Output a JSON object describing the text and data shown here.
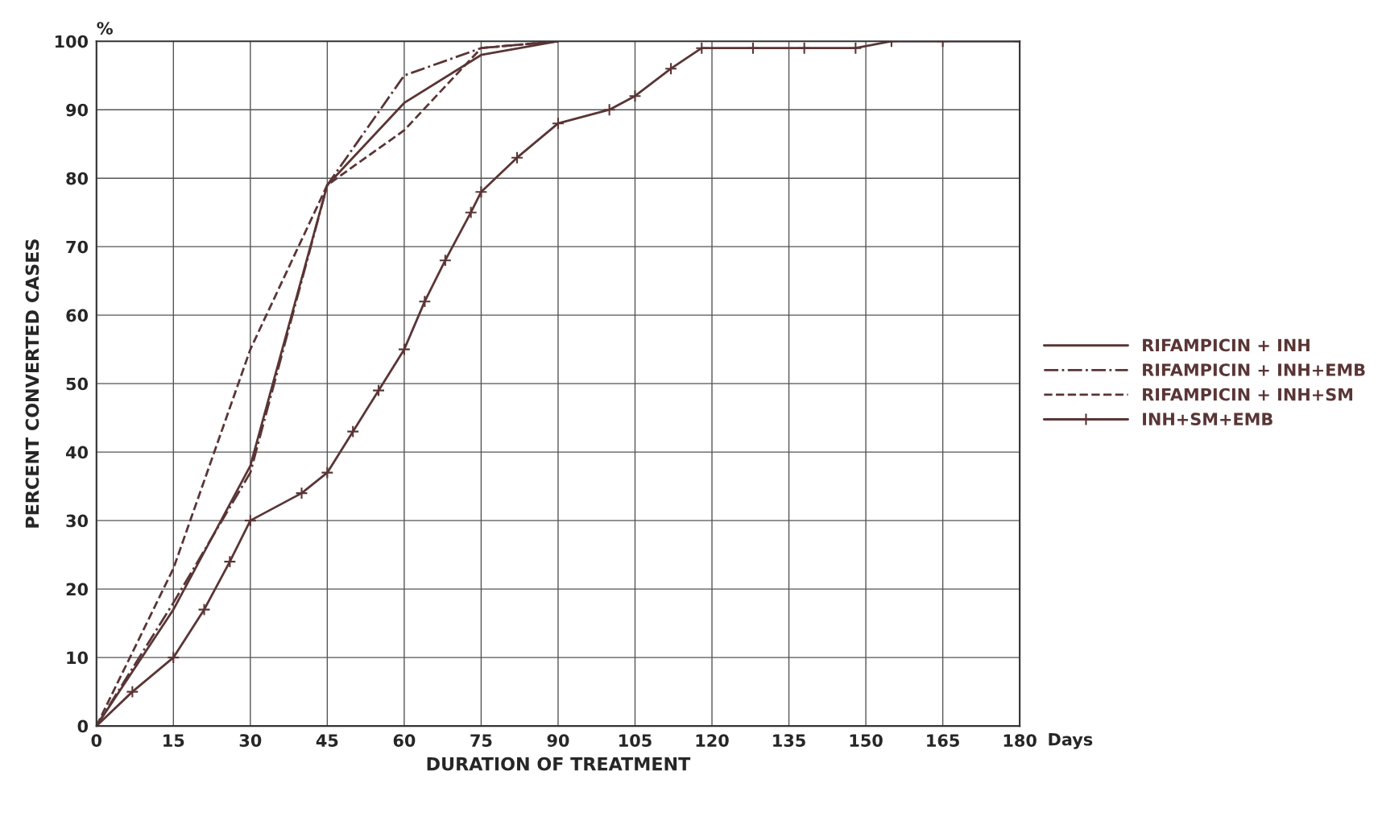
{
  "chart_data": {
    "type": "line",
    "xlabel": "DURATION OF TREATMENT",
    "ylabel": "PERCENT CONVERTED CASES",
    "annotations": [
      "%",
      "Days"
    ],
    "xlim": [
      0,
      180
    ],
    "xticks": [
      0,
      15,
      30,
      45,
      60,
      75,
      90,
      105,
      120,
      135,
      150,
      165,
      180
    ],
    "ylim": [
      0,
      100
    ],
    "yticks": [
      0,
      10,
      20,
      30,
      40,
      50,
      60,
      70,
      80,
      90,
      100
    ],
    "grid": true,
    "legend": "right",
    "series": [
      {
        "name": "RIFAMPICIN + INH",
        "color": "#5a3535",
        "line_style": "solid",
        "marker": "none",
        "x": [
          0,
          15,
          30,
          45,
          60,
          75,
          90
        ],
        "values": [
          0,
          17,
          38,
          79,
          91,
          98,
          100
        ]
      },
      {
        "name": "RIFAMPICIN + INH+EMB",
        "color": "#5a3535",
        "line_style": "dashdot",
        "marker": "none",
        "x": [
          0,
          15,
          30,
          45,
          60,
          75,
          90
        ],
        "values": [
          0,
          18,
          37,
          79,
          95,
          99,
          100
        ]
      },
      {
        "name": "RIFAMPICIN + INH+SM",
        "color": "#5a3535",
        "line_style": "dashed",
        "marker": "none",
        "x": [
          0,
          15,
          30,
          45,
          60,
          75,
          90
        ],
        "values": [
          0,
          23,
          55,
          79,
          87,
          99,
          100
        ]
      },
      {
        "name": "INH+SM+EMB",
        "color": "#5a3535",
        "line_style": "solid",
        "marker": "cross",
        "x": [
          0,
          7,
          15,
          21,
          26,
          30,
          40,
          45,
          50,
          55,
          60,
          64,
          68,
          73,
          75,
          82,
          90,
          100,
          105,
          112,
          118,
          128,
          138,
          148,
          155,
          165,
          180
        ],
        "values": [
          0,
          5,
          10,
          17,
          24,
          30,
          34,
          37,
          43,
          49,
          55,
          62,
          68,
          75,
          78,
          83,
          88,
          90,
          92,
          96,
          99,
          99,
          99,
          99,
          100,
          100,
          100
        ]
      }
    ]
  }
}
